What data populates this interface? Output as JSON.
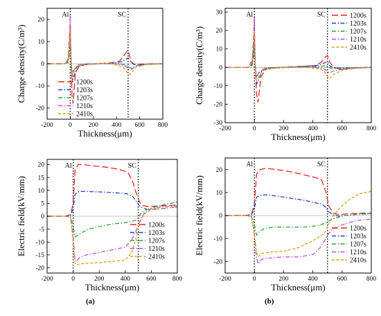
{
  "panel_labels": [
    "(a)",
    "(b)"
  ],
  "chart_data": [
    {
      "type": "line",
      "xlabel": "Thickness(μm)",
      "ylabel": "Charge density(C/m³)",
      "xlim": [
        -200,
        800
      ],
      "ylim": [
        -25,
        25
      ],
      "xticks": [
        -200,
        0,
        200,
        400,
        600,
        800
      ],
      "yticks": [
        -20,
        -10,
        0,
        10,
        20
      ],
      "legend": "bottom-left",
      "annotations": [
        {
          "text": "Al",
          "x": 0
        },
        {
          "text": "SC",
          "x": 500
        }
      ],
      "series": [
        {
          "name": "1200s",
          "color": "#e8231a",
          "dash": "long-dash",
          "x": [
            -200,
            -60,
            -30,
            -15,
            -5,
            0,
            8,
            15,
            25,
            45,
            80,
            150,
            250,
            350,
            420,
            450,
            475,
            490,
            500,
            510,
            525,
            550,
            600,
            700,
            800
          ],
          "y": [
            0,
            0,
            0.3,
            4,
            14,
            18,
            0,
            -14,
            -18,
            -4,
            -1,
            -0.3,
            0.1,
            0.4,
            1,
            2.5,
            4.5,
            5.5,
            6,
            4,
            1,
            -0.3,
            -0.2,
            0,
            0
          ]
        },
        {
          "name": "1203s",
          "color": "#1c3fd6",
          "dash": "dash-dot",
          "x": [
            -200,
            -50,
            -20,
            -8,
            0,
            8,
            18,
            30,
            60,
            120,
            250,
            380,
            450,
            480,
            500,
            515,
            540,
            580,
            650,
            800
          ],
          "y": [
            0,
            0,
            0.8,
            6,
            12,
            0,
            -8,
            -6,
            -1.5,
            -0.3,
            0,
            0.3,
            1,
            2,
            2.6,
            1.5,
            0,
            -0.6,
            -0.3,
            0
          ]
        },
        {
          "name": "1207s",
          "color": "#2aa33a",
          "dash": "dash-dot",
          "x": [
            -200,
            -50,
            -20,
            -8,
            0,
            8,
            18,
            35,
            70,
            150,
            300,
            420,
            470,
            490,
            500,
            510,
            530,
            560,
            620,
            800
          ],
          "y": [
            0,
            0,
            0.5,
            4,
            9,
            0,
            -4,
            -2.5,
            -0.5,
            0,
            0,
            0,
            -0.3,
            -0.8,
            -1.2,
            -1.8,
            -2,
            -1,
            -0.3,
            0
          ]
        },
        {
          "name": "1210s",
          "color": "#b84fe0",
          "dash": "dash-dot",
          "x": [
            -200,
            -40,
            -15,
            -5,
            0,
            6,
            14,
            30,
            70,
            200,
            400,
            470,
            490,
            500,
            510,
            530,
            570,
            650,
            800
          ],
          "y": [
            0,
            0,
            3,
            14,
            22,
            0,
            -6,
            -3,
            -0.5,
            0,
            0,
            -0.8,
            -1.6,
            -2.5,
            -3,
            -2.5,
            -1.2,
            -0.3,
            0
          ]
        },
        {
          "name": "2410s",
          "color": "#d4a017",
          "dash": "dash",
          "x": [
            -200,
            -40,
            -15,
            -5,
            0,
            6,
            14,
            30,
            70,
            200,
            350,
            450,
            480,
            500,
            510,
            530,
            570,
            650,
            800
          ],
          "y": [
            0,
            0,
            2,
            10,
            16,
            0,
            -7,
            -4,
            -1,
            0,
            0.2,
            -1.5,
            -3,
            -4.5,
            -5,
            -4,
            -1.5,
            -0.4,
            0
          ]
        }
      ]
    },
    {
      "type": "line",
      "xlabel": "Thickness(μm)",
      "ylabel": "Charge density(C/m³)",
      "xlim": [
        -200,
        800
      ],
      "ylim": [
        -30,
        32
      ],
      "xticks": [
        -200,
        0,
        200,
        400,
        600,
        800
      ],
      "yticks": [
        -30,
        -20,
        -10,
        0,
        10,
        20,
        30
      ],
      "legend": "top-right",
      "annotations": [
        {
          "text": "Al",
          "x": 0
        },
        {
          "text": "SC",
          "x": 500
        }
      ],
      "series": [
        {
          "name": "1200s",
          "color": "#e8231a",
          "dash": "long-dash",
          "x": [
            -200,
            -40,
            -15,
            -5,
            0,
            6,
            14,
            25,
            45,
            80,
            150,
            300,
            420,
            460,
            485,
            500,
            515,
            540,
            600,
            700,
            800
          ],
          "y": [
            0,
            0,
            2,
            12,
            21,
            0,
            -14,
            -19,
            -5,
            -1,
            -0.3,
            0.3,
            1,
            3,
            5.5,
            6.5,
            3,
            0,
            -1,
            -0.3,
            0
          ]
        },
        {
          "name": "1203s",
          "color": "#1c3fd6",
          "dash": "dash-dot",
          "x": [
            -200,
            -40,
            -15,
            -5,
            0,
            6,
            15,
            28,
            50,
            100,
            250,
            420,
            470,
            495,
            505,
            520,
            560,
            650,
            800
          ],
          "y": [
            0,
            0,
            1.5,
            8,
            15,
            0,
            -9,
            -7,
            -2,
            -0.3,
            0.3,
            0.8,
            2,
            3,
            2.5,
            0.5,
            -0.5,
            -0.2,
            0
          ]
        },
        {
          "name": "1207s",
          "color": "#2aa33a",
          "dash": "dash-dot",
          "x": [
            -200,
            -40,
            -15,
            -5,
            0,
            6,
            15,
            30,
            60,
            120,
            300,
            450,
            490,
            505,
            520,
            560,
            650,
            800
          ],
          "y": [
            0,
            0,
            1,
            6,
            12,
            0,
            -5,
            -3.5,
            -1,
            -0.2,
            0.2,
            0.5,
            1,
            0.5,
            -0.5,
            -0.8,
            -0.3,
            0
          ]
        },
        {
          "name": "1210s",
          "color": "#b84fe0",
          "dash": "dash-dot",
          "x": [
            -200,
            -40,
            -15,
            -5,
            0,
            6,
            14,
            30,
            70,
            200,
            400,
            470,
            490,
            500,
            515,
            540,
            600,
            700,
            800
          ],
          "y": [
            0,
            0,
            4,
            18,
            28,
            0,
            -5,
            -3,
            -0.5,
            0,
            0,
            -0.5,
            -1.5,
            -2.5,
            -3,
            -2,
            -1,
            -0.3,
            0
          ]
        },
        {
          "name": "2410s",
          "color": "#d4a017",
          "dash": "dash",
          "x": [
            -200,
            -40,
            -15,
            -5,
            0,
            6,
            14,
            30,
            70,
            200,
            350,
            450,
            480,
            500,
            515,
            540,
            600,
            700,
            800
          ],
          "y": [
            0,
            0,
            3,
            12,
            20,
            0,
            -8,
            -5,
            -1,
            0,
            0,
            -0.8,
            -2.5,
            -5,
            -6,
            -4,
            -1.5,
            -0.5,
            -0.2
          ]
        }
      ]
    },
    {
      "type": "line",
      "xlabel": "Thickness(μm)",
      "ylabel": "Electric field(kV/mm)",
      "xlim": [
        -200,
        800
      ],
      "ylim": [
        -22,
        22
      ],
      "xticks": [
        -200,
        0,
        200,
        400,
        600,
        800
      ],
      "yticks": [
        -20,
        -15,
        -10,
        -5,
        0,
        5,
        10,
        15,
        20
      ],
      "legend": "right",
      "annotations": [
        {
          "text": "Al",
          "x": 0
        },
        {
          "text": "SC",
          "x": 500
        }
      ],
      "series": [
        {
          "name": "1200s",
          "color": "#e8231a",
          "dash": "long-dash",
          "x": [
            -200,
            -60,
            -20,
            0,
            15,
            40,
            80,
            150,
            250,
            350,
            420,
            460,
            490,
            510,
            530,
            560,
            600,
            700,
            800
          ],
          "y": [
            0,
            0,
            0.5,
            5,
            18,
            20,
            20,
            19.5,
            19,
            18.2,
            17,
            13,
            8,
            5.5,
            4.2,
            3.8,
            3.8,
            4.1,
            4.3
          ]
        },
        {
          "name": "1203s",
          "color": "#1c3fd6",
          "dash": "dash-dot",
          "x": [
            -200,
            -60,
            -20,
            0,
            15,
            40,
            80,
            150,
            250,
            350,
            420,
            460,
            490,
            510,
            540,
            580,
            650,
            800
          ],
          "y": [
            0,
            0,
            0.3,
            3,
            8.5,
            9.5,
            9.6,
            9.5,
            9.3,
            9,
            8.6,
            7.5,
            5.5,
            4,
            3,
            2.6,
            2.8,
            3.6
          ]
        },
        {
          "name": "1207s",
          "color": "#2aa33a",
          "dash": "dash-dot",
          "x": [
            -200,
            -60,
            -20,
            0,
            15,
            35,
            60,
            120,
            200,
            300,
            400,
            450,
            480,
            500,
            520,
            560,
            620,
            700,
            800
          ],
          "y": [
            0,
            0,
            -0.3,
            -4,
            -8,
            -7.5,
            -6.5,
            -5,
            -4,
            -3,
            -2.5,
            -2,
            -1.5,
            -0.5,
            1,
            2.5,
            3.5,
            4.5,
            5.5
          ]
        },
        {
          "name": "1210s",
          "color": "#b84fe0",
          "dash": "dash-dot",
          "x": [
            -200,
            -60,
            -20,
            0,
            12,
            25,
            50,
            100,
            200,
            300,
            400,
            450,
            480,
            500,
            520,
            550,
            600,
            700,
            800
          ],
          "y": [
            0,
            0,
            -0.5,
            -8,
            -16,
            -17.5,
            -16,
            -15,
            -14,
            -13,
            -12,
            -9,
            -6,
            -3.5,
            -1,
            1.5,
            3,
            3.8,
            4
          ]
        },
        {
          "name": "2410s",
          "color": "#d4a017",
          "dash": "dash",
          "x": [
            -200,
            -60,
            -20,
            0,
            12,
            25,
            50,
            100,
            200,
            300,
            400,
            450,
            480,
            500,
            520,
            550,
            600,
            700,
            800
          ],
          "y": [
            0,
            0,
            -0.5,
            -10,
            -18,
            -18.8,
            -18.5,
            -18.2,
            -18,
            -17.5,
            -17,
            -14,
            -9,
            -5,
            -1.5,
            1,
            2.5,
            3.2,
            3.5
          ]
        }
      ]
    },
    {
      "type": "line",
      "xlabel": "Thickness(μm)",
      "ylabel": "Electric field(kV/mm)",
      "xlim": [
        -200,
        800
      ],
      "ylim": [
        -25,
        25
      ],
      "xticks": [
        -200,
        0,
        200,
        400,
        600,
        800
      ],
      "yticks": [
        -20,
        -10,
        0,
        10,
        20
      ],
      "legend": "bottom-right",
      "annotations": [
        {
          "text": "Al",
          "x": 0
        },
        {
          "text": "SC",
          "x": 500
        }
      ],
      "series": [
        {
          "name": "1200s",
          "color": "#e8231a",
          "dash": "long-dash",
          "x": [
            -200,
            -60,
            -20,
            0,
            15,
            40,
            80,
            150,
            250,
            350,
            420,
            460,
            490,
            510,
            540,
            580,
            650,
            720,
            800
          ],
          "y": [
            0,
            0,
            0.5,
            5,
            18,
            20,
            20.5,
            20,
            19,
            17.5,
            16.5,
            15.5,
            10,
            4,
            1,
            0.4,
            0.8,
            1,
            1
          ]
        },
        {
          "name": "1203s",
          "color": "#1c3fd6",
          "dash": "dash-dot",
          "x": [
            -200,
            -60,
            -20,
            0,
            15,
            40,
            80,
            150,
            250,
            350,
            420,
            460,
            490,
            510,
            540,
            580,
            650,
            720,
            800
          ],
          "y": [
            0,
            0,
            0.3,
            3,
            8,
            8.8,
            9,
            8.5,
            7.5,
            6.5,
            5.5,
            5,
            3.5,
            1.5,
            0.3,
            -0.3,
            0.2,
            0.7,
            1
          ]
        },
        {
          "name": "1207s",
          "color": "#2aa33a",
          "dash": "dash-dot",
          "x": [
            -200,
            -60,
            -20,
            0,
            15,
            35,
            70,
            150,
            250,
            350,
            420,
            460,
            490,
            520,
            560,
            620,
            700,
            800
          ],
          "y": [
            0,
            0,
            -0.3,
            -4,
            -8.5,
            -7,
            -5.5,
            -5,
            -5,
            -5,
            -4.5,
            -4,
            -3,
            -2,
            -1,
            0,
            0.5,
            0.8
          ]
        },
        {
          "name": "1210s",
          "color": "#b84fe0",
          "dash": "dash-dot",
          "x": [
            -200,
            -60,
            -20,
            0,
            12,
            25,
            50,
            100,
            200,
            300,
            400,
            450,
            480,
            500,
            530,
            580,
            650,
            720,
            800
          ],
          "y": [
            0,
            0,
            -0.5,
            -8,
            -17,
            -21,
            -19,
            -18.5,
            -18,
            -18,
            -17,
            -14,
            -11,
            -8.5,
            -6,
            -4.5,
            -3,
            -2,
            -1.5
          ]
        },
        {
          "name": "2410s",
          "color": "#d4a017",
          "dash": "dash",
          "x": [
            -200,
            -60,
            -20,
            0,
            12,
            25,
            50,
            100,
            200,
            300,
            400,
            450,
            480,
            500,
            530,
            580,
            650,
            720,
            800
          ],
          "y": [
            0,
            0,
            -0.5,
            -8,
            -15,
            -18,
            -16.5,
            -16,
            -15.5,
            -14,
            -11,
            -9,
            -7.5,
            -5,
            -1,
            3,
            7,
            9.5,
            10.5
          ]
        }
      ]
    }
  ]
}
